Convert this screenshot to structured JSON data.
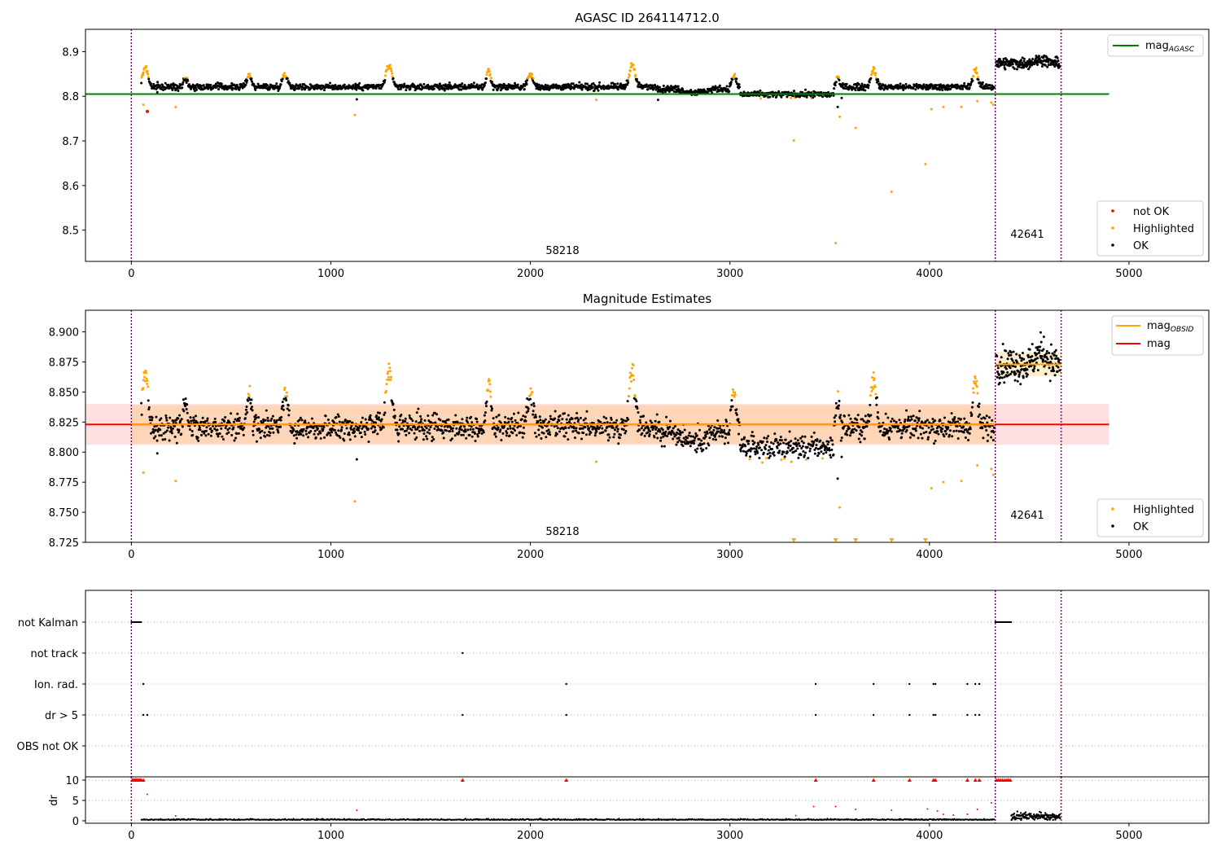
{
  "chart_data": [
    {
      "type": "scatter",
      "title": "AGASC ID 264114712.0",
      "xlim": [
        -230,
        5400
      ],
      "ylim": [
        8.43,
        8.95
      ],
      "xticks": [
        0,
        1000,
        2000,
        3000,
        4000,
        5000
      ],
      "yticks": [
        8.5,
        8.6,
        8.7,
        8.8,
        8.9
      ],
      "ytick_labels": [
        "8.5",
        "8.6",
        "8.7",
        "8.8",
        "8.9"
      ],
      "obsid_boundaries": [
        0,
        4330,
        4660
      ],
      "obsid_labels": [
        {
          "text": "58218",
          "x": 2160,
          "y": 8.446
        },
        {
          "text": "42641",
          "x": 4490,
          "y": 8.483
        }
      ],
      "reference_line": {
        "name": "mag_AGASC",
        "label_main": "mag",
        "label_sub": "AGASC",
        "y": 8.805,
        "x": [
          -230,
          4900
        ],
        "color": "#008000"
      },
      "series": [
        {
          "name": "not OK",
          "color": "#ff0000",
          "points": [
            [
              80,
              8.766
            ]
          ]
        },
        {
          "name": "Highlighted",
          "color": "#ffa500",
          "points": [
            [
              60,
              8.781
            ],
            [
              222,
              8.776
            ],
            [
              1120,
              8.758
            ],
            [
              2330,
              8.792
            ],
            [
              3320,
              8.701
            ],
            [
              3530,
              8.471
            ],
            [
              3550,
              8.754
            ],
            [
              3630,
              8.729
            ],
            [
              3810,
              8.586
            ],
            [
              3980,
              8.648
            ],
            [
              4010,
              8.771
            ],
            [
              4070,
              8.776
            ],
            [
              4160,
              8.776
            ],
            [
              4240,
              8.789
            ],
            [
              4310,
              8.786
            ],
            [
              4320,
              8.781
            ]
          ]
        },
        {
          "name": "OK",
          "color": "#000000",
          "points": [
            [
              130,
              8.809
            ],
            [
              1130,
              8.793
            ],
            [
              3540,
              8.776
            ],
            [
              3560,
              8.796
            ],
            [
              2640,
              8.792
            ]
          ]
        }
      ],
      "legends": [
        {
          "position": "upper-right",
          "entries": [
            "mag_AGASC"
          ]
        },
        {
          "position": "lower-right",
          "entries": [
            "not OK",
            "Highlighted",
            "OK"
          ]
        }
      ]
    },
    {
      "type": "scatter",
      "title": "Magnitude Estimates",
      "xlim": [
        -230,
        5400
      ],
      "ylim": [
        8.725,
        8.918
      ],
      "xticks": [
        0,
        1000,
        2000,
        3000,
        4000,
        5000
      ],
      "yticks": [
        8.725,
        8.75,
        8.775,
        8.8,
        8.825,
        8.85,
        8.875,
        8.9
      ],
      "ytick_labels": [
        "8.725",
        "8.750",
        "8.775",
        "8.800",
        "8.825",
        "8.850",
        "8.875",
        "8.900"
      ],
      "obsid_boundaries": [
        0,
        4330,
        4660
      ],
      "obsid_labels": [
        {
          "text": "58218",
          "x": 2160,
          "y": 8.731
        },
        {
          "text": "42641",
          "x": 4490,
          "y": 8.747
        }
      ],
      "mag_line": {
        "name": "mag",
        "y": 8.823,
        "band": [
          8.806,
          8.84
        ],
        "x": [
          -230,
          4900
        ],
        "color": "#ff0000"
      },
      "mag_obsid": [
        {
          "name": "mag_OBSID",
          "label_main": "mag",
          "label_sub": "OBSID",
          "y": 8.823,
          "band": [
            8.807,
            8.839
          ],
          "x": [
            0,
            4330
          ],
          "color": "#ffa500"
        },
        {
          "y": 8.873,
          "band": [
            8.863,
            8.883
          ],
          "x": [
            4330,
            4660
          ],
          "color": "#ffa500"
        }
      ],
      "series": [
        {
          "name": "Highlighted",
          "color": "#ffa500",
          "points": [
            [
              60,
              8.783
            ],
            [
              222,
              8.776
            ],
            [
              1120,
              8.759
            ],
            [
              2330,
              8.792
            ],
            [
              3320,
              8.728
            ],
            [
              3530,
              8.728
            ],
            [
              3550,
              8.754
            ],
            [
              3630,
              8.729
            ],
            [
              3810,
              8.728
            ],
            [
              3980,
              8.728
            ],
            [
              4010,
              8.77
            ],
            [
              4070,
              8.775
            ],
            [
              4160,
              8.776
            ],
            [
              4240,
              8.789
            ],
            [
              4310,
              8.786
            ],
            [
              4320,
              8.781
            ]
          ]
        },
        {
          "name": "OK",
          "color": "#000000",
          "points": [
            [
              130,
              8.799
            ],
            [
              1130,
              8.794
            ],
            [
              3540,
              8.778
            ],
            [
              3560,
              8.796
            ]
          ]
        }
      ],
      "legends": [
        {
          "position": "upper-right",
          "entries": [
            "mag_OBSID",
            "mag"
          ]
        },
        {
          "position": "lower-right",
          "entries": [
            "Highlighted",
            "OK"
          ]
        }
      ]
    },
    {
      "type": "scatter",
      "xlim": [
        -230,
        5400
      ],
      "xticks": [
        0,
        1000,
        2000,
        3000,
        4000,
        5000
      ],
      "flag_rows": [
        "not Kalman",
        "not track",
        "Ion. rad.",
        "dr > 5",
        "OBS not OK"
      ],
      "obsid_boundaries": [
        0,
        4330,
        4660
      ],
      "flags": {
        "not Kalman": [
          [
            0,
            50
          ],
          [
            4330,
            4410
          ]
        ],
        "not track": [
          1660
        ],
        "Ion. rad.": [
          60,
          2180,
          3430,
          3720,
          3900,
          4020,
          4030,
          4190,
          4230,
          4250
        ],
        "dr > 5": [
          60,
          80,
          1660,
          2180,
          3430,
          3720,
          3900,
          4020,
          4030,
          4190,
          4230,
          4250
        ],
        "OBS not OK": []
      }
    },
    {
      "type": "scatter",
      "ylabel": "dr",
      "xlim": [
        -230,
        5400
      ],
      "ylim": [
        -0.6,
        10.8
      ],
      "xticks": [
        0,
        1000,
        2000,
        3000,
        4000,
        5000
      ],
      "yticks": [
        0,
        5,
        10
      ],
      "ytick_labels": [
        "0",
        "5",
        "10"
      ],
      "obsid_boundaries": [
        0,
        4330,
        4660
      ],
      "clipped_marker_color": "#ff0000",
      "clipped_x": [
        5,
        10,
        15,
        20,
        25,
        30,
        35,
        40,
        45,
        50,
        60,
        1660,
        2180,
        3430,
        3720,
        3900,
        4020,
        4030,
        4190,
        4230,
        4250,
        4335,
        4345,
        4355,
        4365,
        4375,
        4385,
        4395,
        4405
      ],
      "outliers": [
        [
          80,
          6.5
        ],
        [
          222,
          1.2
        ],
        [
          1130,
          2.6
        ],
        [
          3330,
          1.3
        ],
        [
          3420,
          3.5
        ],
        [
          3530,
          3.5
        ],
        [
          3630,
          2.8
        ],
        [
          3810,
          2.6
        ],
        [
          3990,
          2.9
        ],
        [
          4040,
          2.4
        ],
        [
          4070,
          1.6
        ],
        [
          4120,
          1.4
        ],
        [
          4190,
          1.6
        ],
        [
          4240,
          2.8
        ],
        [
          4310,
          4.4
        ]
      ]
    }
  ]
}
